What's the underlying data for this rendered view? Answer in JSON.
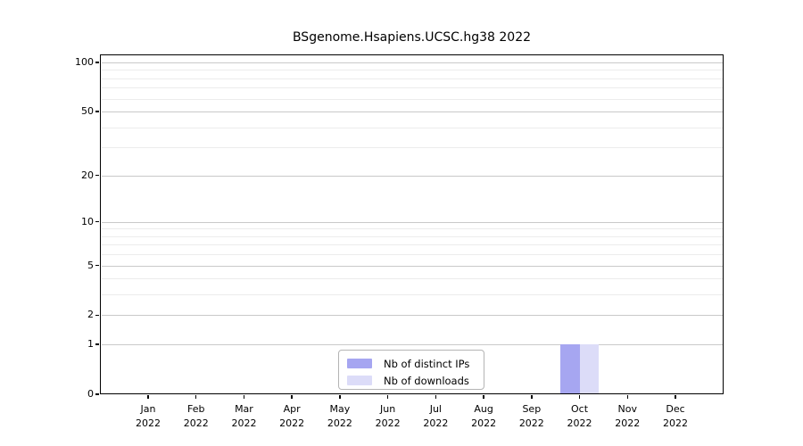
{
  "chart_data": {
    "type": "bar",
    "title": "BSgenome.Hsapiens.UCSC.hg38 2022",
    "categories": [
      "Jan",
      "Feb",
      "Mar",
      "Apr",
      "May",
      "Jun",
      "Jul",
      "Aug",
      "Sep",
      "Oct",
      "Nov",
      "Dec"
    ],
    "x_tick_year": "2022",
    "series": [
      {
        "name": "Nb of distinct IPs",
        "color": "#a6a6f1",
        "values": [
          0,
          0,
          0,
          0,
          0,
          0,
          0,
          0,
          0,
          1,
          0,
          0
        ]
      },
      {
        "name": "Nb of downloads",
        "color": "#dcdcf8",
        "values": [
          0,
          0,
          0,
          0,
          0,
          0,
          0,
          0,
          0,
          1,
          0,
          0
        ]
      }
    ],
    "y_scale": "log1p",
    "y_major_ticks": [
      0,
      1,
      2,
      5,
      10,
      20,
      50,
      100
    ],
    "y_minor_ticks": [
      3,
      4,
      6,
      7,
      8,
      9,
      30,
      40,
      60,
      70,
      80,
      90
    ],
    "ylim": [
      0,
      113
    ],
    "grid": true,
    "legend_position": "bottom-center"
  }
}
